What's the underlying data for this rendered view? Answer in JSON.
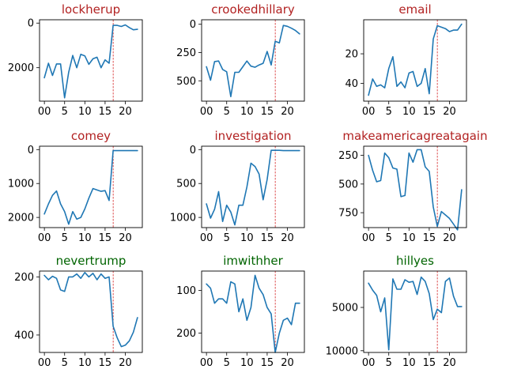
{
  "chart_data": [
    {
      "type": "line",
      "title": "lockherup",
      "x_ticks": [
        "00",
        "5",
        "10",
        "15",
        "20"
      ],
      "y_inverted": true,
      "ylim": [
        3500,
        -150
      ],
      "y_ticks": [
        0,
        2000
      ],
      "grid": false,
      "x": [
        0,
        1,
        2,
        3,
        4,
        5,
        6,
        7,
        8,
        9,
        10,
        11,
        12,
        13,
        14,
        15,
        16,
        17,
        18,
        19,
        20,
        21,
        22,
        23
      ],
      "values": [
        2450,
        1800,
        2350,
        1830,
        1830,
        3350,
        2200,
        1450,
        2000,
        1400,
        1470,
        1850,
        1600,
        1530,
        2000,
        1650,
        1800,
        100,
        100,
        150,
        80,
        200,
        300,
        280
      ],
      "marker_x": 17
    },
    {
      "type": "line",
      "title": "crookedhillary",
      "x_ticks": [
        "00",
        "5",
        "10",
        "15",
        "20"
      ],
      "y_inverted": true,
      "ylim": [
        680,
        -40
      ],
      "y_ticks": [
        0,
        250,
        500
      ],
      "grid": false,
      "x": [
        0,
        1,
        2,
        3,
        4,
        5,
        6,
        7,
        8,
        9,
        10,
        11,
        12,
        13,
        14,
        15,
        16,
        17,
        18,
        19,
        20,
        21,
        22,
        23
      ],
      "values": [
        375,
        495,
        330,
        325,
        400,
        420,
        640,
        425,
        425,
        375,
        325,
        370,
        380,
        360,
        345,
        240,
        360,
        150,
        165,
        10,
        18,
        35,
        55,
        85
      ],
      "marker_x": 17
    },
    {
      "type": "line",
      "title": "email",
      "x_ticks": [
        "00",
        "5",
        "10",
        "15",
        "20"
      ],
      "y_inverted": true,
      "ylim": [
        52,
        -3
      ],
      "y_ticks": [
        20,
        40
      ],
      "grid": false,
      "x": [
        0,
        1,
        2,
        3,
        4,
        5,
        6,
        7,
        8,
        9,
        10,
        11,
        12,
        13,
        14,
        15,
        16,
        17,
        18,
        19,
        20,
        21,
        22,
        23
      ],
      "values": [
        48,
        37,
        42,
        41,
        43,
        30,
        22,
        42,
        39,
        43,
        33,
        32,
        42,
        40,
        30,
        47,
        10,
        1,
        2,
        3,
        5,
        4,
        4,
        0
      ],
      "marker_x": 17
    },
    {
      "type": "line",
      "title": "comey",
      "x_ticks": [
        "00",
        "5",
        "10",
        "15",
        "20"
      ],
      "y_inverted": true,
      "ylim": [
        2300,
        -100
      ],
      "y_ticks": [
        0,
        1000,
        2000
      ],
      "grid": false,
      "x": [
        0,
        1,
        2,
        3,
        4,
        5,
        6,
        7,
        8,
        9,
        10,
        11,
        12,
        13,
        14,
        15,
        16,
        17,
        18,
        19,
        20,
        21,
        22,
        23
      ],
      "values": [
        1900,
        1600,
        1350,
        1220,
        1600,
        1830,
        2200,
        1830,
        2050,
        2000,
        1750,
        1430,
        1150,
        1190,
        1230,
        1210,
        1500,
        30,
        30,
        30,
        30,
        30,
        30,
        30
      ],
      "marker_x": 17
    },
    {
      "type": "line",
      "title": "investigation",
      "x_ticks": [
        "00",
        "5",
        "10",
        "15",
        "20"
      ],
      "y_inverted": true,
      "ylim": [
        1150,
        -50
      ],
      "y_ticks": [
        0,
        500,
        1000
      ],
      "grid": false,
      "x": [
        0,
        1,
        2,
        3,
        4,
        5,
        6,
        7,
        8,
        9,
        10,
        11,
        12,
        13,
        14,
        15,
        16,
        17,
        18,
        19,
        20,
        21,
        22,
        23
      ],
      "values": [
        800,
        1010,
        880,
        620,
        1060,
        820,
        920,
        1110,
        820,
        820,
        550,
        200,
        250,
        360,
        740,
        440,
        10,
        10,
        10,
        15,
        15,
        15,
        15,
        15
      ],
      "marker_x": 17
    },
    {
      "type": "line",
      "title": "makeamericagreatagain",
      "x_ticks": [
        "00",
        "5",
        "10",
        "15",
        "20"
      ],
      "y_inverted": true,
      "ylim": [
        880,
        170
      ],
      "y_ticks": [
        250,
        500,
        750
      ],
      "grid": false,
      "x": [
        0,
        1,
        2,
        3,
        4,
        5,
        6,
        7,
        8,
        9,
        10,
        11,
        12,
        13,
        14,
        15,
        16,
        17,
        18,
        19,
        20,
        21,
        22,
        23
      ],
      "values": [
        250,
        380,
        480,
        470,
        230,
        270,
        360,
        370,
        610,
        600,
        230,
        310,
        200,
        200,
        350,
        390,
        700,
        870,
        740,
        770,
        800,
        850,
        900,
        550
      ],
      "marker_x": 17
    },
    {
      "type": "line",
      "title": "nevertrump",
      "x_ticks": [
        "00",
        "5",
        "10",
        "15",
        "20"
      ],
      "y_inverted": true,
      "ylim": [
        460,
        180
      ],
      "y_ticks": [
        200,
        400
      ],
      "grid": false,
      "x": [
        0,
        1,
        2,
        3,
        4,
        5,
        6,
        7,
        8,
        9,
        10,
        11,
        12,
        13,
        14,
        15,
        16,
        17,
        18,
        19,
        20,
        21,
        22,
        23
      ],
      "values": [
        195,
        210,
        198,
        205,
        245,
        250,
        200,
        200,
        190,
        205,
        185,
        200,
        188,
        210,
        190,
        205,
        200,
        370,
        410,
        440,
        435,
        420,
        390,
        340
      ],
      "marker_x": 17
    },
    {
      "type": "line",
      "title": "imwithher",
      "x_ticks": [
        "00",
        "5",
        "10",
        "15",
        "20"
      ],
      "y_inverted": true,
      "ylim": [
        245,
        55
      ],
      "y_ticks": [
        100,
        200
      ],
      "grid": false,
      "x": [
        0,
        1,
        2,
        3,
        4,
        5,
        6,
        7,
        8,
        9,
        10,
        11,
        12,
        13,
        14,
        15,
        16,
        17,
        18,
        19,
        20,
        21,
        22,
        23
      ],
      "values": [
        85,
        95,
        130,
        120,
        120,
        130,
        80,
        85,
        150,
        120,
        170,
        140,
        65,
        95,
        110,
        140,
        155,
        245,
        200,
        170,
        165,
        180,
        130,
        130
      ],
      "marker_x": 17
    },
    {
      "type": "line",
      "title": "hillyes",
      "x_ticks": [
        "00",
        "5",
        "10",
        "15",
        "20"
      ],
      "y_inverted": true,
      "ylim": [
        10200,
        800
      ],
      "y_ticks": [
        5000,
        10000
      ],
      "grid": false,
      "x": [
        0,
        1,
        2,
        3,
        4,
        5,
        6,
        7,
        8,
        9,
        10,
        11,
        12,
        13,
        14,
        15,
        16,
        17,
        18,
        19,
        20,
        21,
        22,
        23
      ],
      "values": [
        2200,
        3000,
        3600,
        5500,
        3900,
        9900,
        1700,
        2900,
        2900,
        1800,
        2100,
        2000,
        3500,
        1500,
        2000,
        3400,
        6400,
        5200,
        5600,
        2000,
        1600,
        3700,
        4900,
        4900
      ],
      "marker_x": 17
    }
  ],
  "colors": {
    "line": "#1f77b4",
    "marker": "#d62728",
    "title_red": "#b22222",
    "title_green": "#006400"
  },
  "title_colors": [
    "title_red",
    "title_red",
    "title_red",
    "title_red",
    "title_red",
    "title_red",
    "title_green",
    "title_green",
    "title_green"
  ]
}
